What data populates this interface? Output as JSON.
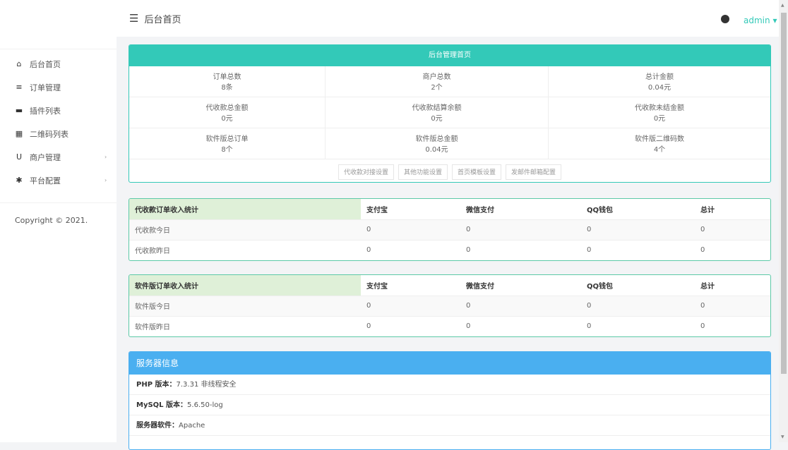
{
  "sidebar": {
    "items": [
      {
        "label": "后台首页",
        "icon": "home-icon"
      },
      {
        "label": "订单管理",
        "icon": "list-icon"
      },
      {
        "label": "插件列表",
        "icon": "plugin-icon"
      },
      {
        "label": "二维码列表",
        "icon": "qrcode-icon"
      },
      {
        "label": "商户管理",
        "icon": "magnet-icon",
        "has_submenu": true
      },
      {
        "label": "平台配置",
        "icon": "gear-icon",
        "has_submenu": true
      }
    ],
    "copyright": "Copyright © 2021."
  },
  "header": {
    "title": "后台首页",
    "user": "admin"
  },
  "overview": {
    "title": "后台管理首页",
    "stats": [
      [
        {
          "label": "订单总数",
          "value": "8条"
        },
        {
          "label": "商户总数",
          "value": "2个"
        },
        {
          "label": "总计金额",
          "value": "0.04元"
        }
      ],
      [
        {
          "label": "代收款总金额",
          "value": "0元"
        },
        {
          "label": "代收款结算余额",
          "value": "0元"
        },
        {
          "label": "代收款未结金额",
          "value": "0元"
        }
      ],
      [
        {
          "label": "软件版总订单",
          "value": "8个"
        },
        {
          "label": "软件版总金额",
          "value": "0.04元"
        },
        {
          "label": "软件版二维码数",
          "value": "4个"
        }
      ]
    ],
    "buttons": [
      "代收款对接设置",
      "其他功能设置",
      "首页模板设置",
      "发邮件邮箱配置"
    ]
  },
  "table1": {
    "headers": [
      "代收款订单收入统计",
      "支付宝",
      "微信支付",
      "QQ钱包",
      "总计"
    ],
    "rows": [
      [
        "代收款今日",
        "0",
        "0",
        "0",
        "0"
      ],
      [
        "代收款昨日",
        "0",
        "0",
        "0",
        "0"
      ]
    ]
  },
  "table2": {
    "headers": [
      "软件版订单收入统计",
      "支付宝",
      "微信支付",
      "QQ钱包",
      "总计"
    ],
    "rows": [
      [
        "软件版今日",
        "0",
        "0",
        "0",
        "0"
      ],
      [
        "软件版昨日",
        "0",
        "0",
        "0",
        "0"
      ]
    ]
  },
  "server": {
    "title": "服务器信息",
    "rows": [
      {
        "label": "PHP 版本：",
        "value": "7.3.31 非线程安全"
      },
      {
        "label": "MySQL 版本：",
        "value": "5.6.50-log"
      },
      {
        "label": "服务器软件：",
        "value": "Apache"
      }
    ]
  },
  "colors": {
    "teal": "#33c9b8",
    "blue": "#4aaff0",
    "green_header": "#dff0d8"
  }
}
